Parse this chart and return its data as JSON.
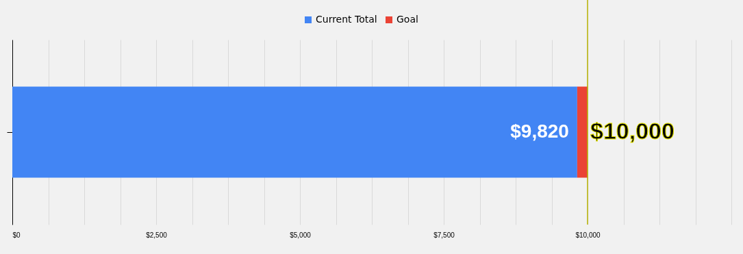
{
  "chart_data": {
    "type": "bar",
    "orientation": "horizontal",
    "stacked": true,
    "categories": [
      null
    ],
    "totals": [
      "$10,000"
    ],
    "series": [
      {
        "name": "Current Total",
        "color": "#4285f4",
        "values": [
          9820
        ],
        "value_labels": [
          "$9,820"
        ]
      },
      {
        "name": "Goal",
        "color": "#ea4335",
        "values": [
          180
        ]
      }
    ],
    "xlim": [
      0,
      12500
    ],
    "xticks": [
      {
        "value": 0,
        "label": "$0"
      },
      {
        "value": 625,
        "label": null
      },
      {
        "value": 1250,
        "label": null
      },
      {
        "value": 1875,
        "label": null
      },
      {
        "value": 2500,
        "label": "$2,500"
      },
      {
        "value": 3125,
        "label": null
      },
      {
        "value": 3750,
        "label": null
      },
      {
        "value": 4375,
        "label": null
      },
      {
        "value": 5000,
        "label": "$5,000"
      },
      {
        "value": 5625,
        "label": null
      },
      {
        "value": 6250,
        "label": null
      },
      {
        "value": 6875,
        "label": null
      },
      {
        "value": 7500,
        "label": "$7,500"
      },
      {
        "value": 8125,
        "label": null
      },
      {
        "value": 8750,
        "label": null
      },
      {
        "value": 9375,
        "label": null
      },
      {
        "value": 10000,
        "label": "$10,000"
      },
      {
        "value": 10625,
        "label": null
      },
      {
        "value": 11250,
        "label": null
      },
      {
        "value": 11875,
        "label": null
      },
      {
        "value": 12500,
        "label": null
      }
    ],
    "grid": true,
    "legend": "top",
    "ref_lines": [
      {
        "axis": "x",
        "value": 10000,
        "color": "#b5b000"
      }
    ]
  }
}
